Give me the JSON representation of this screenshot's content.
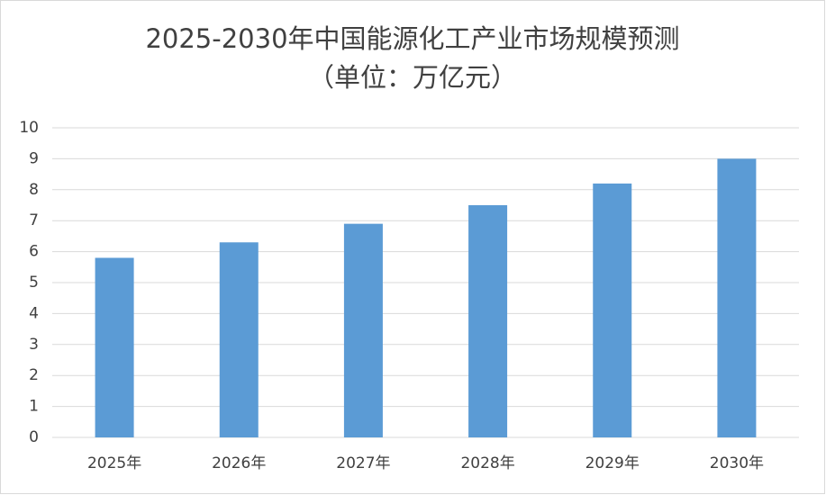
{
  "chart_data": {
    "type": "bar",
    "title": "2025-2030年中国能源化工产业市场规模预测",
    "subtitle": "（单位：万亿元）",
    "categories": [
      "2025年",
      "2026年",
      "2027年",
      "2028年",
      "2029年",
      "2030年"
    ],
    "values": [
      5.8,
      6.3,
      6.9,
      7.5,
      8.2,
      9.0
    ],
    "color": "#5b9bd5",
    "ylim": [
      0,
      10
    ],
    "yticks": [
      0,
      1,
      2,
      3,
      4,
      5,
      6,
      7,
      8,
      9,
      10
    ],
    "grid": true
  }
}
